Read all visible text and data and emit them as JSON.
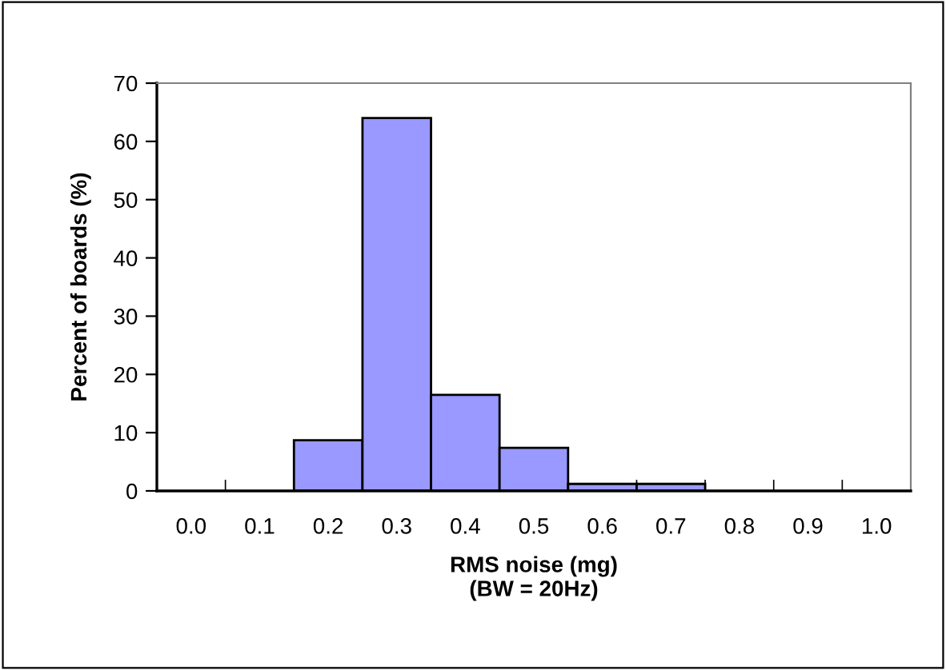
{
  "chart_data": {
    "type": "bar",
    "xlabel": "RMS noise (mg)\n(BW = 20Hz)",
    "ylabel": "Percent of boards (%)",
    "categories": [
      "0.0",
      "0.1",
      "0.2",
      "0.3",
      "0.4",
      "0.5",
      "0.6",
      "0.7",
      "0.8",
      "0.9",
      "1.0"
    ],
    "values": [
      null,
      null,
      8.7,
      64,
      16.5,
      7.4,
      1.2,
      1.2,
      null,
      null,
      null
    ],
    "color": "#9999ff",
    "ylim": [
      0,
      70
    ],
    "yticks": [
      0,
      10,
      20,
      30,
      40,
      50,
      60,
      70
    ],
    "grid": false
  }
}
